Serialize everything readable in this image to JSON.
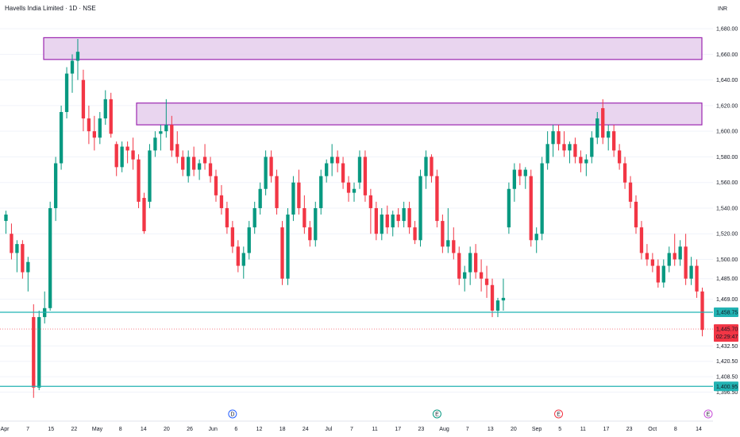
{
  "header": {
    "title": "Havells India Limited · 1D · NSE",
    "currency": "INR"
  },
  "colors": {
    "up": "#089981",
    "down": "#f23645",
    "zone_fill": "#e1c7ea",
    "zone_stroke": "#9c27b0",
    "hline": "#22b3b3",
    "grid": "#f0f3fa"
  },
  "chart_data": {
    "type": "candlestick",
    "ylim": [
      1385,
      1690
    ],
    "y_ticks": [
      1680,
      1660,
      1640,
      1620,
      1600,
      1580,
      1560,
      1540,
      1520,
      1500,
      1485,
      1469,
      1432.5,
      1420.5,
      1408.5,
      1396.5
    ],
    "y_tick_labels": [
      "1,680.00",
      "1,660.00",
      "1,640.00",
      "1,620.00",
      "1,600.00",
      "1,580.00",
      "1,560.00",
      "1,540.00",
      "1,520.00",
      "1,500.00",
      "1,485.00",
      "1,469.00",
      "1,432.50",
      "1,420.50",
      "1,408.50",
      "1,396.50"
    ],
    "x_labels": [
      "Apr",
      "7",
      "15",
      "22",
      "May",
      "8",
      "14",
      "20",
      "26",
      "Jun",
      "6",
      "12",
      "18",
      "24",
      "Jul",
      "7",
      "11",
      "17",
      "23",
      "Aug",
      "7",
      "13",
      "20",
      "Sep",
      "5",
      "11",
      "17",
      "23",
      "Oct",
      "8",
      "14"
    ],
    "candles": [
      [
        1530,
        1538,
        1520,
        1535
      ],
      [
        1520,
        1528,
        1500,
        1505
      ],
      [
        1505,
        1515,
        1490,
        1512
      ],
      [
        1512,
        1515,
        1485,
        1490
      ],
      [
        1490,
        1502,
        1475,
        1498
      ],
      [
        1455,
        1465,
        1392,
        1400
      ],
      [
        1400,
        1460,
        1398,
        1455
      ],
      [
        1455,
        1475,
        1450,
        1462
      ],
      [
        1462,
        1545,
        1460,
        1540
      ],
      [
        1540,
        1580,
        1530,
        1575
      ],
      [
        1575,
        1620,
        1570,
        1615
      ],
      [
        1615,
        1650,
        1610,
        1645
      ],
      [
        1645,
        1660,
        1630,
        1655
      ],
      [
        1655,
        1672,
        1640,
        1662
      ],
      [
        1640,
        1648,
        1600,
        1610
      ],
      [
        1610,
        1620,
        1590,
        1600
      ],
      [
        1600,
        1612,
        1585,
        1595
      ],
      [
        1595,
        1615,
        1590,
        1610
      ],
      [
        1610,
        1632,
        1605,
        1625
      ],
      [
        1625,
        1630,
        1595,
        1598
      ],
      [
        1590,
        1592,
        1565,
        1572
      ],
      [
        1572,
        1592,
        1568,
        1588
      ],
      [
        1588,
        1592,
        1575,
        1585
      ],
      [
        1585,
        1595,
        1570,
        1578
      ],
      [
        1578,
        1582,
        1540,
        1545
      ],
      [
        1548,
        1552,
        1520,
        1522
      ],
      [
        1545,
        1590,
        1540,
        1585
      ],
      [
        1585,
        1600,
        1580,
        1595
      ],
      [
        1598,
        1605,
        1585,
        1600
      ],
      [
        1600,
        1625,
        1595,
        1605
      ],
      [
        1605,
        1612,
        1580,
        1585
      ],
      [
        1590,
        1600,
        1575,
        1580
      ],
      [
        1580,
        1585,
        1565,
        1570
      ],
      [
        1565,
        1585,
        1560,
        1580
      ],
      [
        1580,
        1588,
        1565,
        1570
      ],
      [
        1570,
        1578,
        1562,
        1575
      ],
      [
        1580,
        1590,
        1570,
        1575
      ],
      [
        1575,
        1580,
        1560,
        1565
      ],
      [
        1565,
        1570,
        1545,
        1550
      ],
      [
        1550,
        1558,
        1535,
        1540
      ],
      [
        1540,
        1545,
        1520,
        1525
      ],
      [
        1525,
        1530,
        1505,
        1510
      ],
      [
        1510,
        1515,
        1490,
        1495
      ],
      [
        1495,
        1510,
        1485,
        1505
      ],
      [
        1505,
        1530,
        1500,
        1525
      ],
      [
        1525,
        1545,
        1520,
        1540
      ],
      [
        1540,
        1560,
        1535,
        1555
      ],
      [
        1555,
        1585,
        1550,
        1580
      ],
      [
        1580,
        1585,
        1560,
        1565
      ],
      [
        1565,
        1570,
        1535,
        1540
      ],
      [
        1525,
        1530,
        1480,
        1485
      ],
      [
        1485,
        1540,
        1480,
        1535
      ],
      [
        1535,
        1565,
        1530,
        1560
      ],
      [
        1560,
        1570,
        1535,
        1540
      ],
      [
        1540,
        1550,
        1520,
        1525
      ],
      [
        1525,
        1530,
        1510,
        1515
      ],
      [
        1515,
        1545,
        1510,
        1540
      ],
      [
        1540,
        1570,
        1535,
        1565
      ],
      [
        1565,
        1578,
        1560,
        1575
      ],
      [
        1575,
        1590,
        1565,
        1580
      ],
      [
        1580,
        1585,
        1568,
        1575
      ],
      [
        1575,
        1580,
        1555,
        1560
      ],
      [
        1560,
        1565,
        1545,
        1552
      ],
      [
        1552,
        1560,
        1545,
        1555
      ],
      [
        1560,
        1585,
        1555,
        1580
      ],
      [
        1580,
        1585,
        1545,
        1550
      ],
      [
        1550,
        1555,
        1520,
        1540
      ],
      [
        1540,
        1545,
        1515,
        1520
      ],
      [
        1520,
        1540,
        1515,
        1535
      ],
      [
        1535,
        1542,
        1520,
        1525
      ],
      [
        1525,
        1538,
        1518,
        1535
      ],
      [
        1535,
        1540,
        1525,
        1530
      ],
      [
        1530,
        1545,
        1525,
        1540
      ],
      [
        1540,
        1545,
        1520,
        1525
      ],
      [
        1525,
        1530,
        1512,
        1515
      ],
      [
        1515,
        1570,
        1510,
        1565
      ],
      [
        1565,
        1585,
        1555,
        1580
      ],
      [
        1580,
        1582,
        1560,
        1565
      ],
      [
        1565,
        1570,
        1525,
        1530
      ],
      [
        1530,
        1535,
        1505,
        1510
      ],
      [
        1510,
        1540,
        1505,
        1515
      ],
      [
        1515,
        1525,
        1500,
        1505
      ],
      [
        1505,
        1510,
        1480,
        1485
      ],
      [
        1485,
        1495,
        1475,
        1490
      ],
      [
        1490,
        1510,
        1480,
        1505
      ],
      [
        1505,
        1512,
        1485,
        1490
      ],
      [
        1490,
        1500,
        1475,
        1485
      ],
      [
        1485,
        1495,
        1470,
        1480
      ],
      [
        1480,
        1485,
        1455,
        1460
      ],
      [
        1460,
        1470,
        1455,
        1468
      ],
      [
        1468,
        1485,
        1460,
        1470
      ],
      [
        1525,
        1560,
        1520,
        1555
      ],
      [
        1555,
        1575,
        1545,
        1570
      ],
      [
        1570,
        1575,
        1558,
        1565
      ],
      [
        1565,
        1572,
        1555,
        1570
      ],
      [
        1565,
        1570,
        1510,
        1515
      ],
      [
        1515,
        1525,
        1505,
        1520
      ],
      [
        1520,
        1580,
        1515,
        1575
      ],
      [
        1575,
        1600,
        1570,
        1590
      ],
      [
        1590,
        1605,
        1580,
        1600
      ],
      [
        1600,
        1605,
        1585,
        1590
      ],
      [
        1590,
        1600,
        1580,
        1585
      ],
      [
        1585,
        1592,
        1575,
        1590
      ],
      [
        1590,
        1595,
        1575,
        1580
      ],
      [
        1580,
        1585,
        1568,
        1575
      ],
      [
        1575,
        1582,
        1565,
        1578
      ],
      [
        1580,
        1600,
        1575,
        1595
      ],
      [
        1595,
        1615,
        1590,
        1610
      ],
      [
        1618,
        1625,
        1590,
        1595
      ],
      [
        1595,
        1605,
        1585,
        1600
      ],
      [
        1600,
        1605,
        1580,
        1585
      ],
      [
        1585,
        1590,
        1570,
        1575
      ],
      [
        1575,
        1580,
        1555,
        1560
      ],
      [
        1560,
        1565,
        1540,
        1545
      ],
      [
        1545,
        1550,
        1520,
        1525
      ],
      [
        1525,
        1530,
        1500,
        1505
      ],
      [
        1505,
        1512,
        1495,
        1500
      ],
      [
        1500,
        1505,
        1490,
        1495
      ],
      [
        1495,
        1500,
        1478,
        1482
      ],
      [
        1482,
        1500,
        1478,
        1495
      ],
      [
        1495,
        1510,
        1490,
        1505
      ],
      [
        1505,
        1520,
        1495,
        1500
      ],
      [
        1500,
        1515,
        1495,
        1510
      ],
      [
        1510,
        1520,
        1480,
        1485
      ],
      [
        1485,
        1502,
        1480,
        1495
      ],
      [
        1495,
        1500,
        1470,
        1475
      ],
      [
        1475,
        1478,
        1440,
        1445
      ]
    ],
    "zones": [
      [
        1656,
        1673
      ],
      [
        1605,
        1622
      ]
    ],
    "hlines": [
      {
        "value": 1458.75,
        "label": "1,458.75"
      },
      {
        "value": 1400.95,
        "label": "1,400.95"
      }
    ],
    "last_price": {
      "value": 1445.7,
      "label": "1,445.70",
      "countdown": "02:29:47"
    },
    "markers": [
      {
        "letter": "D",
        "color": "#2962ff",
        "after_index": 41
      },
      {
        "letter": "E",
        "color": "#089981",
        "after_index": 78
      },
      {
        "letter": "E",
        "color": "#f23645",
        "after_index": 100
      },
      {
        "letter": "E",
        "color": "#c850d8",
        "after_index": 130
      }
    ]
  }
}
